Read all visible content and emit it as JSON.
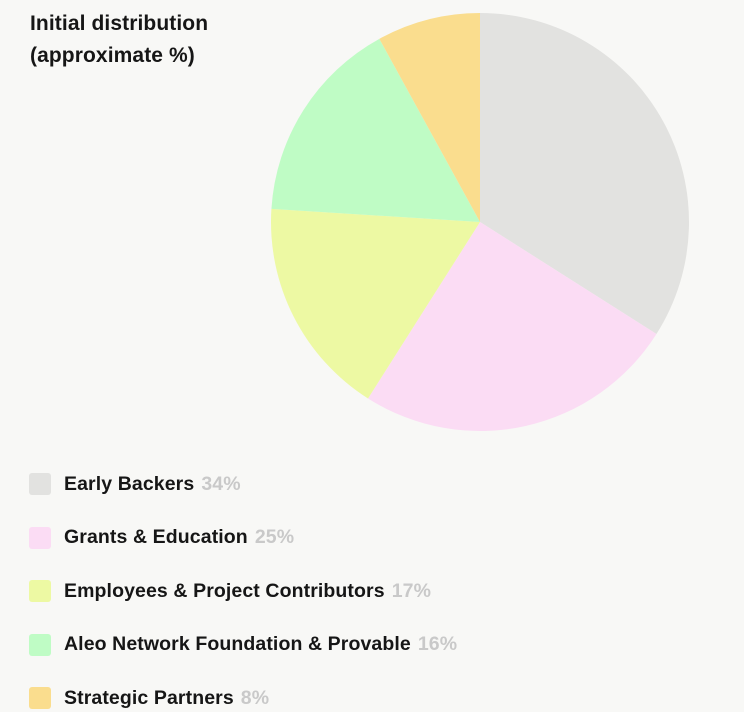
{
  "header": {
    "title_line1": "Initial distribution",
    "title_line2": "(approximate %)"
  },
  "colors": {
    "page_background": "#f8f8f6",
    "label_text": "#161616",
    "percent_text": "#c9c9c9"
  },
  "chart_data": {
    "type": "pie",
    "title": "Initial distribution (approximate %)",
    "start_angle_deg": 0,
    "direction": "clockwise",
    "legend_position": "bottom-left",
    "slices": [
      {
        "label": "Early Backers",
        "value": 34,
        "pct_label": "34%",
        "color": "#e2e2e0"
      },
      {
        "label": "Grants & Education",
        "value": 25,
        "pct_label": "25%",
        "color": "#fbdcf4"
      },
      {
        "label": "Employees & Project Contributors",
        "value": 17,
        "pct_label": "17%",
        "color": "#edf9a3"
      },
      {
        "label": "Aleo Network Foundation & Provable",
        "value": 16,
        "pct_label": "16%",
        "color": "#bffcc5"
      },
      {
        "label": "Strategic Partners",
        "value": 8,
        "pct_label": "8%",
        "color": "#fadd8e"
      }
    ]
  }
}
